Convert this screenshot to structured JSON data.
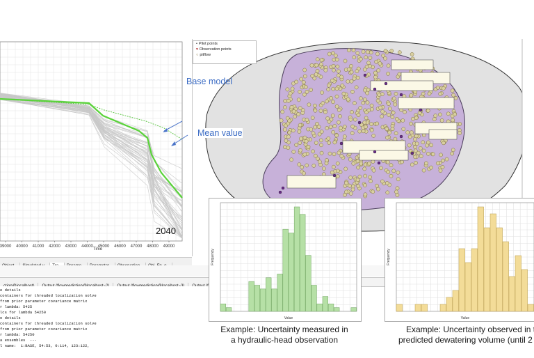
{
  "chart_panel": {
    "year_label": "2040",
    "x_axis_title": "Time",
    "x_ticks": [
      "39000",
      "40000",
      "41000",
      "42000",
      "43000",
      "44000",
      "45000",
      "46000",
      "47000",
      "48000",
      "49000"
    ],
    "callouts": {
      "base": "Base model",
      "mean": "Mean value"
    },
    "colors": {
      "ensemble": "#c8c8c8",
      "mean": "#5ad33a",
      "base": "#62c84a",
      "arrow": "#4a74c9"
    }
  },
  "result_tabs": [
    "Object...",
    "Simulated v...",
    "Tra...",
    "Parame...",
    "Parameter...",
    "Observation...",
    "Obj. Fn. o..."
  ],
  "output_tabs": [
    "ction@localhost)",
    "Output (flowprediction@localhost~2)",
    "Output (flowprediction@localhost~3)",
    "Output (flowpre",
    "ilization deta"
  ],
  "console_lines": [
    "e details",
    "containers for threaded localization solve",
    "from prior parameter covariance matrix",
    "r lambda: 5425",
    "lcs for lambda 54250",
    "e details",
    "containers for threaded localization solve",
    "from prior parameter covariance matrix",
    "r lambda: 54250",
    "",
    "a ensembles  ---",
    "l name:  1:BASE, 54:53, 0:114, 123:122,"
  ],
  "map_legend": [
    {
      "icon": "pilot-point",
      "label": "Pilot points",
      "color": "#333333"
    },
    {
      "icon": "observation-point",
      "label": "Observation points",
      "color": "#b02020"
    },
    {
      "icon": "pitflow",
      "label": "pitflow",
      "color": "#8a7a40"
    }
  ],
  "hist_head": {
    "y_label": "Frequency",
    "x_label": "Value",
    "color": "#b6e0a6",
    "edge": "#6fa35f",
    "values": [
      2,
      1,
      0,
      0,
      0,
      8,
      7,
      6,
      9,
      6,
      10,
      22,
      21,
      28,
      26,
      15,
      7,
      2,
      4,
      2,
      1,
      0,
      0,
      1
    ],
    "caption": [
      "Example: Uncertainty measured in",
      "a hydraulic-head observation"
    ]
  },
  "hist_dewater": {
    "y_label": "Frequency",
    "x_label": "Value",
    "color": "#f3dc98",
    "edge": "#b79c4c",
    "values": [
      1,
      0,
      0,
      1,
      1,
      0,
      0,
      1,
      2,
      3,
      9,
      7,
      9,
      15,
      12,
      14,
      12,
      10,
      5,
      8,
      6,
      1
    ],
    "caption": [
      "Example: Uncertainty observed in t",
      "predicted dewatering volume (until 2"
    ]
  }
}
